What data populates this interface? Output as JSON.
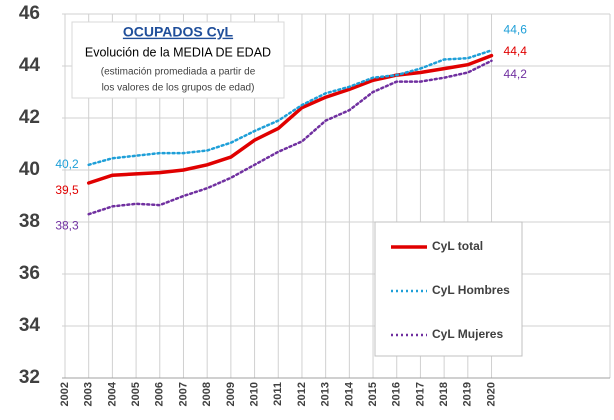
{
  "chart_data": {
    "type": "line",
    "title": "OCUPADOS CyL",
    "subtitle": "Evolución de la MEDIA DE EDAD",
    "notes": [
      "(estimación promediada a partir de",
      "los valores de los grupos de edad)"
    ],
    "x": [
      2003,
      2004,
      2005,
      2006,
      2007,
      2008,
      2009,
      2010,
      2011,
      2012,
      2013,
      2014,
      2015,
      2016,
      2017,
      2018,
      2019,
      2020
    ],
    "series": [
      {
        "name": "CyL total",
        "color": "#e00000",
        "style": "solid",
        "values": [
          39.5,
          39.8,
          39.85,
          39.9,
          40.0,
          40.2,
          40.5,
          41.15,
          41.6,
          42.4,
          42.8,
          43.1,
          43.45,
          43.65,
          43.75,
          43.9,
          44.05,
          44.4
        ],
        "start_label": "39,5",
        "end_label": "44,4"
      },
      {
        "name": "CyL Hombres",
        "color": "#1e9fd8",
        "style": "dotted",
        "values": [
          40.2,
          40.45,
          40.55,
          40.65,
          40.65,
          40.75,
          41.05,
          41.5,
          41.9,
          42.5,
          42.95,
          43.2,
          43.55,
          43.65,
          43.9,
          44.25,
          44.3,
          44.6
        ],
        "start_label": "40,2",
        "end_label": "44,6"
      },
      {
        "name": "CyL Mujeres",
        "color": "#7030a0",
        "style": "dotted",
        "values": [
          38.3,
          38.6,
          38.7,
          38.65,
          39.0,
          39.3,
          39.7,
          40.2,
          40.7,
          41.1,
          41.9,
          42.3,
          43.0,
          43.4,
          43.4,
          43.55,
          43.75,
          44.2
        ],
        "start_label": "38,3",
        "end_label": "44,2"
      }
    ],
    "xlim": [
      2002,
      2025
    ],
    "xticks": [
      2002,
      2003,
      2004,
      2005,
      2006,
      2007,
      2008,
      2009,
      2010,
      2011,
      2012,
      2013,
      2014,
      2015,
      2016,
      2017,
      2018,
      2019,
      2020
    ],
    "ylim": [
      32,
      46
    ],
    "yticks": [
      32,
      34,
      36,
      38,
      40,
      42,
      44,
      46
    ],
    "grid": true,
    "legend": "lower right"
  }
}
